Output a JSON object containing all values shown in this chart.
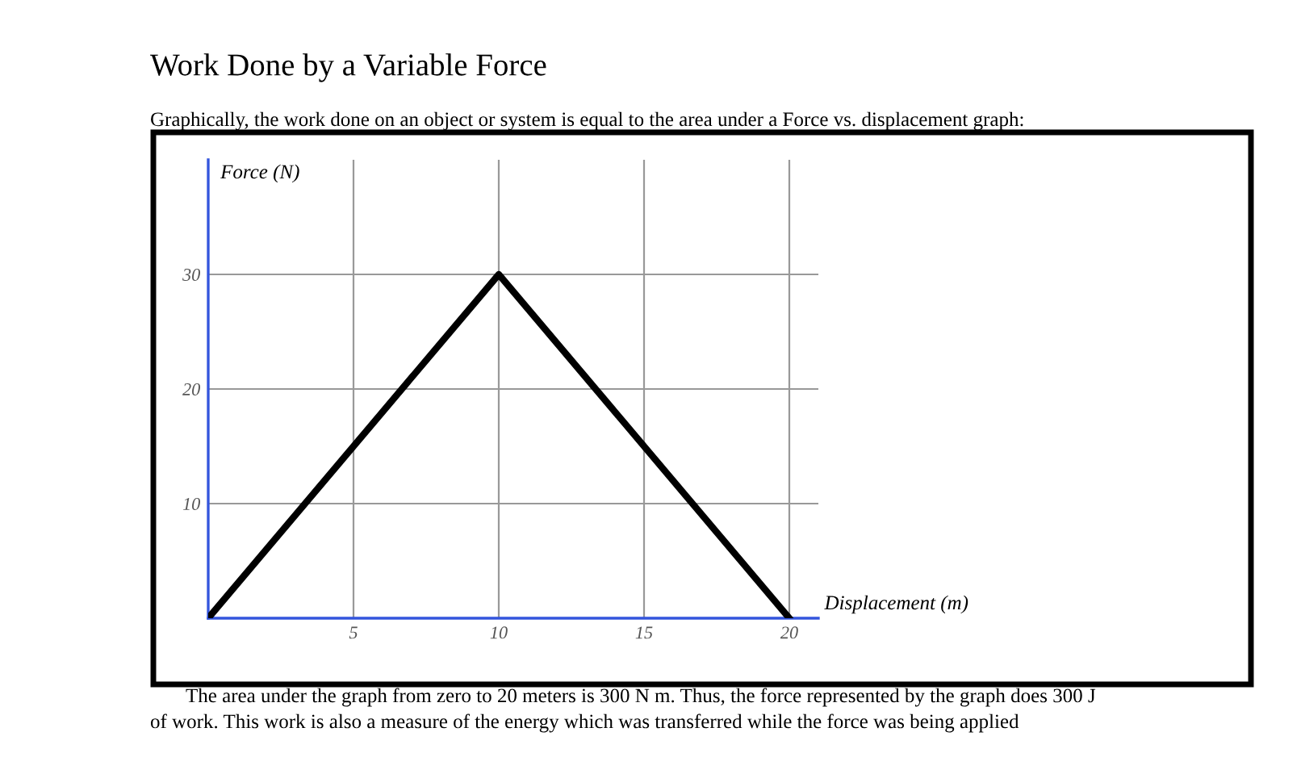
{
  "chart_data": {
    "type": "line",
    "title": "Work Done by a Variable Force",
    "subtitle": "Graphically, the work done on an object or system is equal to the area under a Force vs. displacement graph:",
    "xlabel": "Displacement (m)",
    "ylabel": "Force (N)",
    "x": [
      0,
      10,
      20
    ],
    "series": [
      {
        "color": "#000000",
        "values": [
          0,
          30,
          0
        ]
      }
    ],
    "xlim": [
      0,
      21
    ],
    "ylim": [
      0,
      40
    ],
    "xticks": [
      5,
      10,
      15,
      20
    ],
    "yticks": [
      10,
      20,
      30
    ],
    "grid": true,
    "marker": "none",
    "line_style": "solid",
    "annotations": [
      "The area under the graph from zero to 20 meters is 300 N m. Thus, the force represented by the graph does 300 J",
      "of work. This work is also a measure of the energy which was transferred while the force was being applied"
    ]
  }
}
